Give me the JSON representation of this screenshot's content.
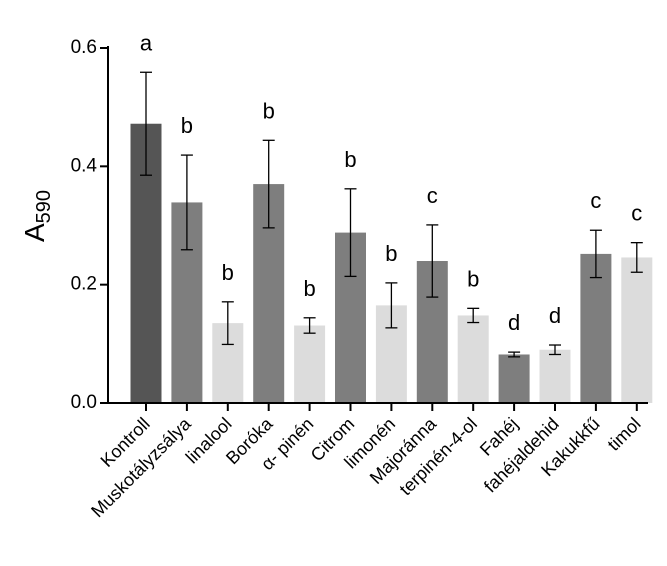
{
  "chart_data": {
    "type": "bar",
    "ylabel": "A",
    "ylabel_sub": "590",
    "ylim": [
      0,
      0.6
    ],
    "yticks": [
      "0.0",
      "0.2",
      "0.4",
      "0.6"
    ],
    "ytick_values": [
      0,
      0.2,
      0.4,
      0.6
    ],
    "categories": [
      "Kontroll",
      "Muskotályzsálya",
      "linalool",
      "Boróka",
      "α- pinén",
      "Citrom",
      "limonén",
      "Majoránna",
      "terpinén-4-ol",
      "Fahéj",
      "fahéjaldehid",
      "Kakukkfű",
      "timol"
    ],
    "values": [
      0.472,
      0.339,
      0.135,
      0.37,
      0.131,
      0.288,
      0.165,
      0.24,
      0.148,
      0.082,
      0.09,
      0.252,
      0.246
    ],
    "errors": [
      0.087,
      0.08,
      0.036,
      0.074,
      0.013,
      0.074,
      0.038,
      0.061,
      0.012,
      0.004,
      0.008,
      0.04,
      0.025
    ],
    "letters": [
      "a",
      "b",
      "b",
      "b",
      "b",
      "b",
      "b",
      "c",
      "b",
      "d",
      "d",
      "c",
      "c"
    ],
    "colors": [
      "#555555",
      "#7e7e7e",
      "#dcdcdc",
      "#7e7e7e",
      "#dcdcdc",
      "#7e7e7e",
      "#dcdcdc",
      "#7e7e7e",
      "#dcdcdc",
      "#7e7e7e",
      "#dcdcdc",
      "#7e7e7e",
      "#dcdcdc"
    ],
    "grid": false,
    "legend": "none"
  }
}
